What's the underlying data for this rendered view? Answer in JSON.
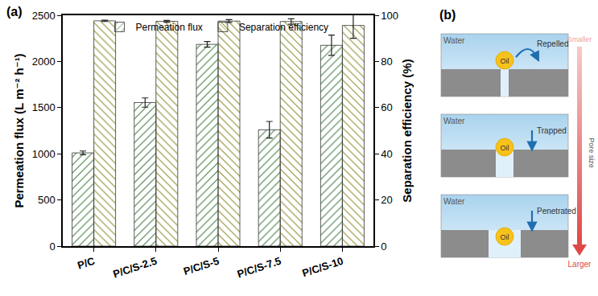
{
  "chart_data": {
    "type": "bar",
    "annotations": [
      "(a)"
    ],
    "categories": [
      "P/C",
      "P/C/S-2.5",
      "P/C/S-5",
      "P/C/S-7.5",
      "P/C/S-10"
    ],
    "series": [
      {
        "name": "Permeation flux",
        "color": "#a9d8a0",
        "values": [
          1010,
          1555,
          2185,
          1260,
          2175
        ],
        "errors": [
          20,
          50,
          30,
          90,
          110
        ]
      },
      {
        "name": "Separation efficiency",
        "color": "#f7f48b",
        "axis": "y2",
        "values": [
          97.6,
          97.4,
          97.5,
          97.3,
          95.6
        ],
        "errors": [
          0.3,
          0.4,
          0.6,
          1.2,
          5.6
        ]
      }
    ],
    "ylabel": "Permeation flux (L m⁻² h⁻¹)",
    "y2label": "Separation efficiency (%)",
    "ylim": [
      0,
      2500
    ],
    "yticks": [
      0,
      500,
      1000,
      1500,
      2000,
      2500
    ],
    "y2lim": [
      0,
      100
    ],
    "y2ticks": [
      0,
      20,
      40,
      60,
      80,
      100
    ],
    "legend": "top",
    "grid": false
  },
  "diagram": {
    "label": "(b)",
    "panels": [
      {
        "medium": "Water",
        "droplet": "Oil",
        "behavior": "Repelled"
      },
      {
        "medium": "Water",
        "droplet": "Oil",
        "behavior": "Trapped"
      },
      {
        "medium": "Water",
        "droplet": "Oil",
        "behavior": "Penetrated"
      }
    ],
    "scale": {
      "title": "Pore size",
      "top": "Smaller",
      "bottom": "Larger"
    }
  }
}
